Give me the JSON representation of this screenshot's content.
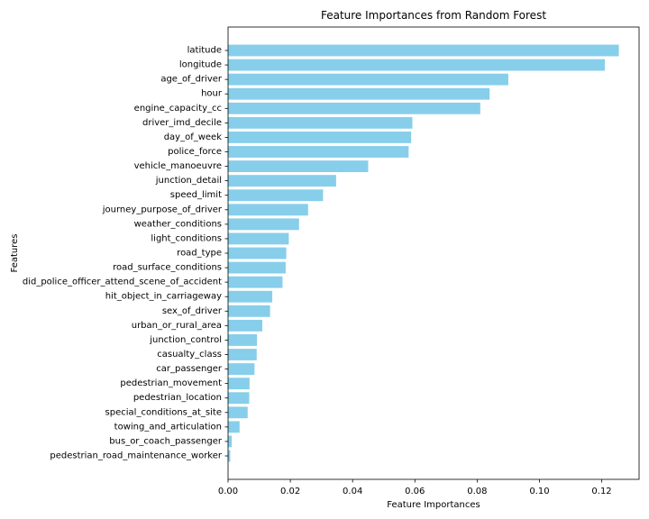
{
  "chart_data": {
    "type": "bar",
    "orientation": "horizontal",
    "title": "Feature Importances from Random Forest",
    "xlabel": "Feature Importances",
    "ylabel": "Features",
    "xlim": [
      0,
      0.132
    ],
    "xticks": [
      0.0,
      0.02,
      0.04,
      0.06,
      0.08,
      0.1,
      0.12
    ],
    "xtick_labels": [
      "0.00",
      "0.02",
      "0.04",
      "0.06",
      "0.08",
      "0.10",
      "0.12"
    ],
    "grid": false,
    "bar_color": "#87CEEB",
    "categories": [
      "latitude",
      "longitude",
      "age_of_driver",
      "hour",
      "engine_capacity_cc",
      "driver_imd_decile",
      "day_of_week",
      "police_force",
      "vehicle_manoeuvre",
      "junction_detail",
      "speed_limit",
      "journey_purpose_of_driver",
      "weather_conditions",
      "light_conditions",
      "road_type",
      "road_surface_conditions",
      "did_police_officer_attend_scene_of_accident",
      "hit_object_in_carriageway",
      "sex_of_driver",
      "urban_or_rural_area",
      "junction_control",
      "casualty_class",
      "car_passenger",
      "pedestrian_movement",
      "pedestrian_location",
      "special_conditions_at_site",
      "towing_and_articulation",
      "bus_or_coach_passenger",
      "pedestrian_road_maintenance_worker"
    ],
    "values": [
      0.1255,
      0.121,
      0.09,
      0.084,
      0.081,
      0.0592,
      0.0588,
      0.058,
      0.045,
      0.0347,
      0.0305,
      0.0257,
      0.0228,
      0.0195,
      0.0187,
      0.0185,
      0.0175,
      0.0142,
      0.0135,
      0.011,
      0.0093,
      0.0092,
      0.0085,
      0.0069,
      0.0068,
      0.0063,
      0.0037,
      0.0012,
      0.0007
    ]
  }
}
